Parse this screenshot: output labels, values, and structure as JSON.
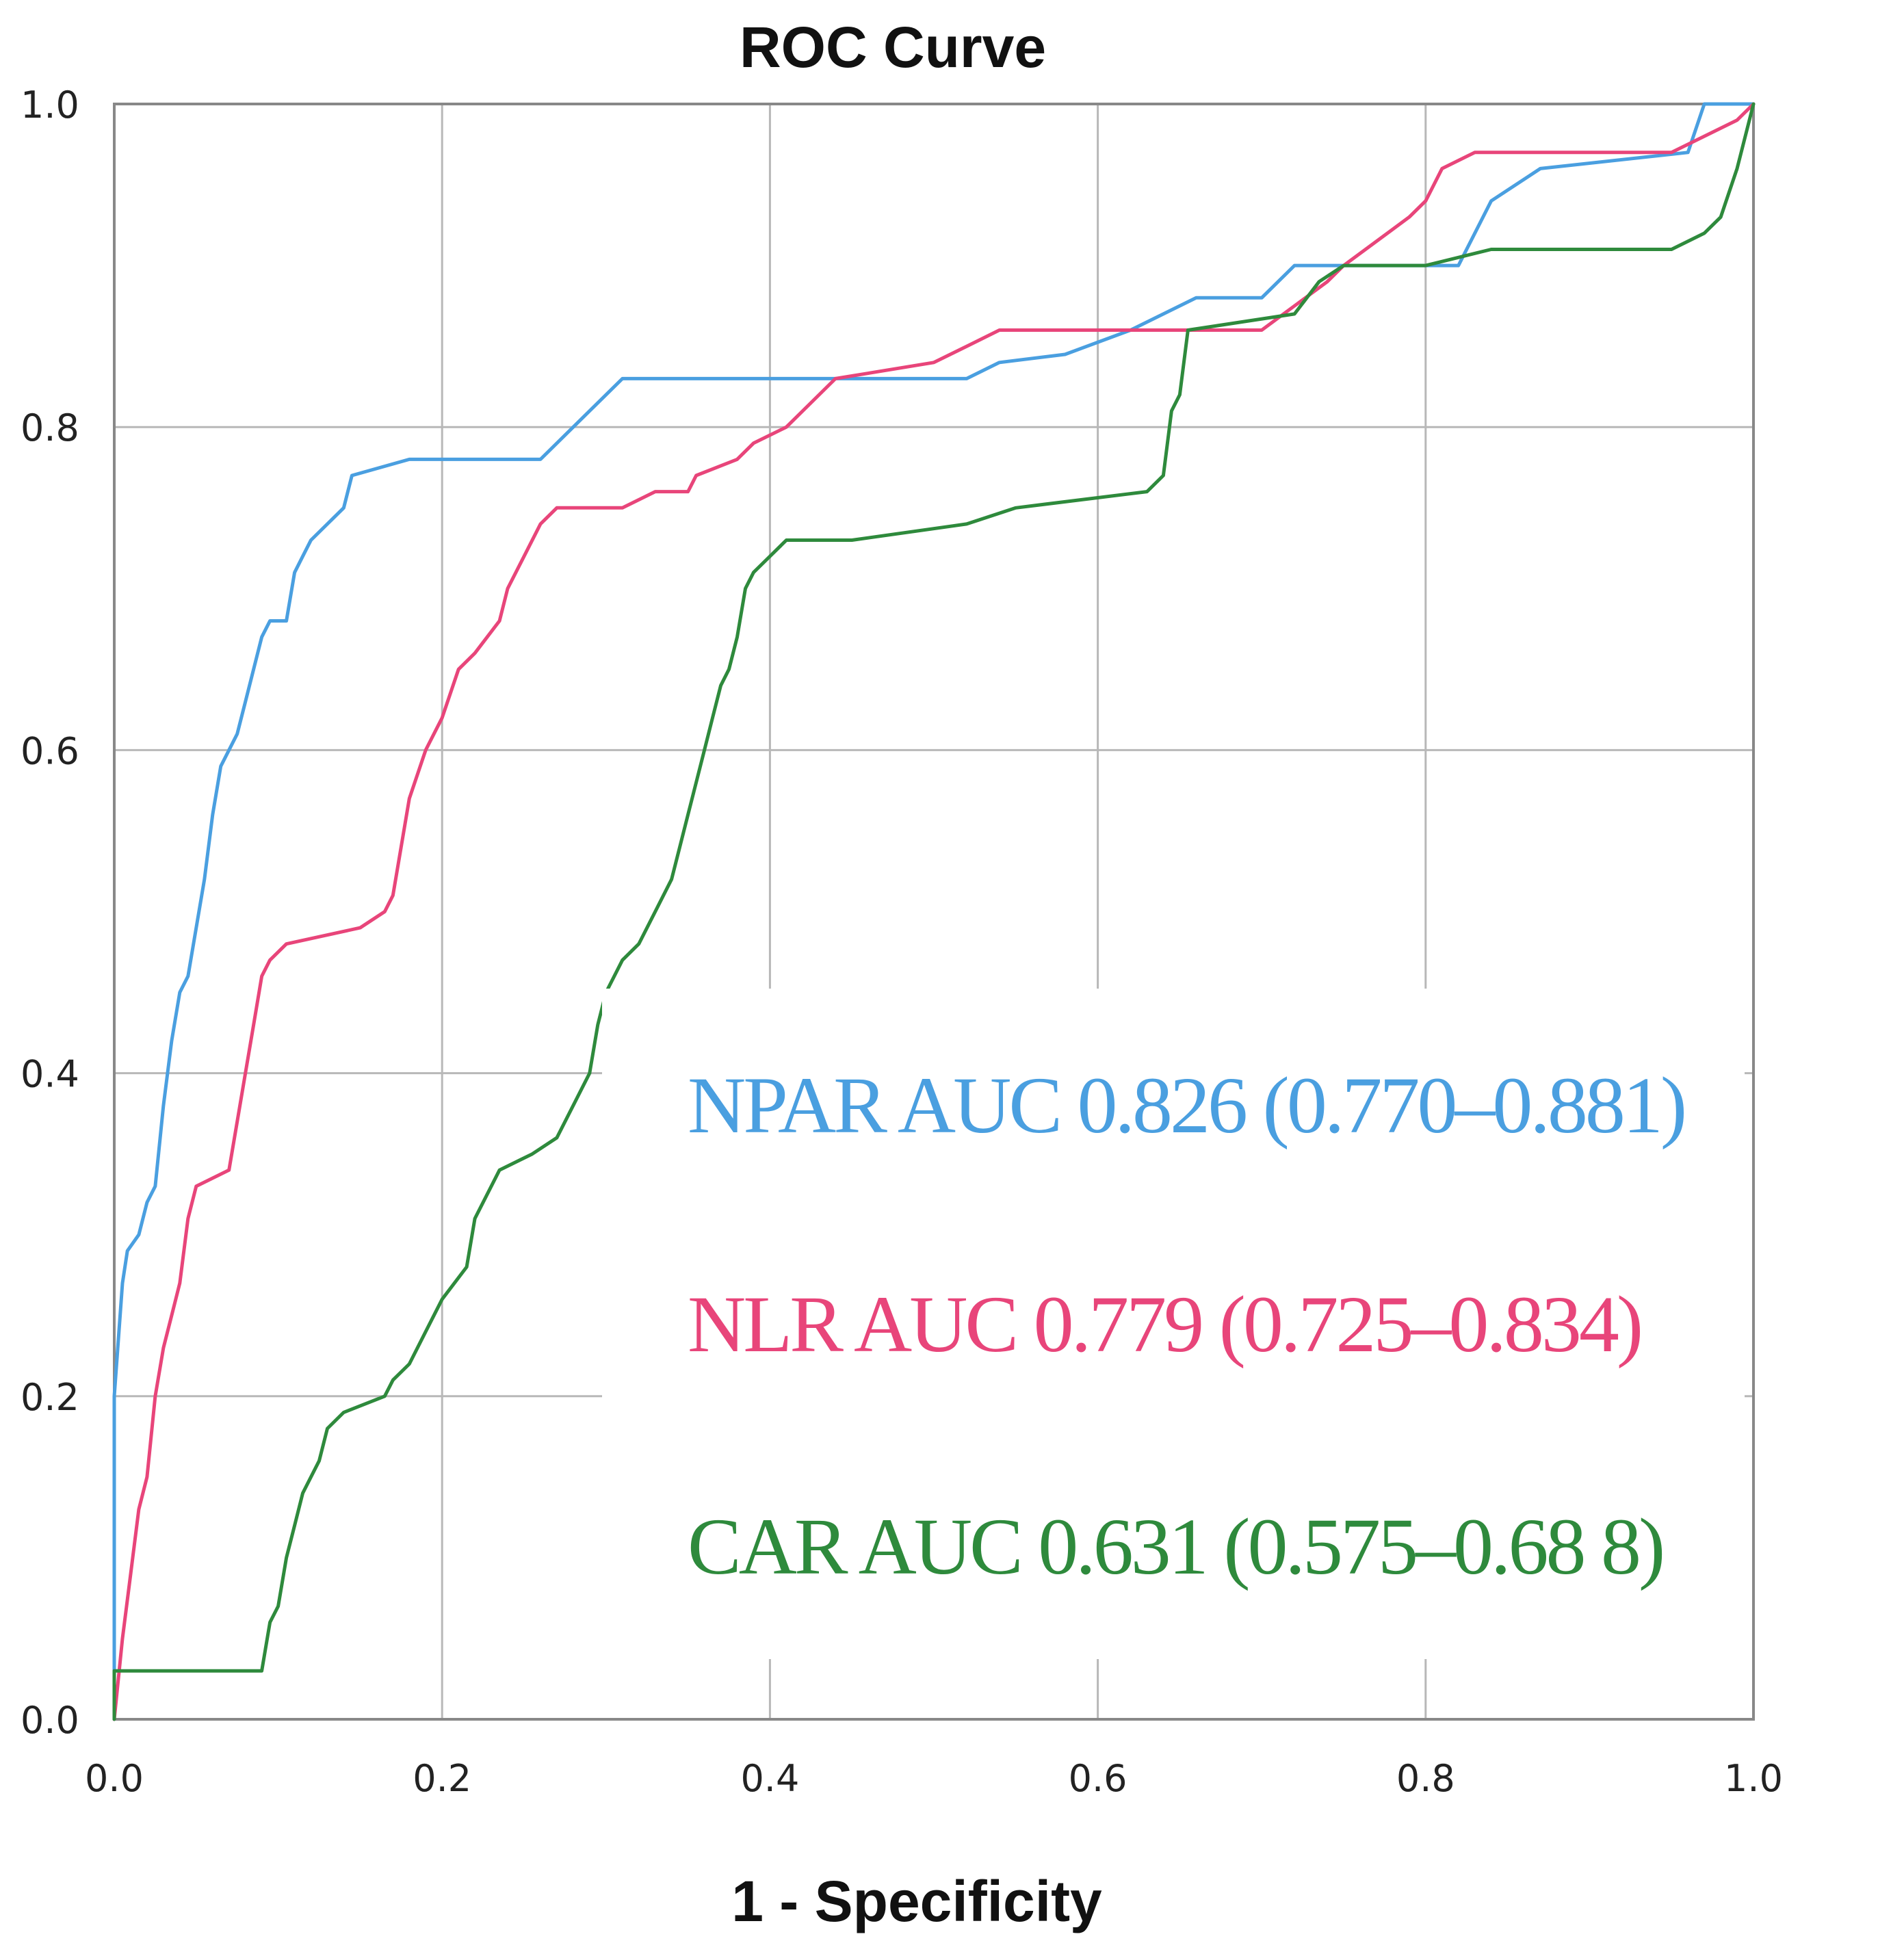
{
  "chart_data": {
    "type": "line",
    "title": "ROC Curve",
    "xlabel": "1 - Specificity",
    "ylabel": "",
    "xlim": [
      0,
      1
    ],
    "ylim": [
      0,
      1
    ],
    "grid": true,
    "x_ticks": [
      "0.0",
      "0.2",
      "0.4",
      "0.6",
      "0.8",
      "1.0"
    ],
    "y_ticks": [
      "0.0",
      "0.2",
      "0.4",
      "0.6",
      "0.8",
      "1.0"
    ],
    "series": [
      {
        "name": "NPAR AUC 0.826 (0.770–0.881)",
        "color": "#4a9fe0",
        "points": [
          [
            0,
            0
          ],
          [
            0,
            0.2
          ],
          [
            0.005,
            0.27
          ],
          [
            0.008,
            0.29
          ],
          [
            0.015,
            0.3
          ],
          [
            0.02,
            0.32
          ],
          [
            0.025,
            0.33
          ],
          [
            0.03,
            0.38
          ],
          [
            0.035,
            0.42
          ],
          [
            0.04,
            0.45
          ],
          [
            0.045,
            0.46
          ],
          [
            0.05,
            0.49
          ],
          [
            0.055,
            0.52
          ],
          [
            0.06,
            0.56
          ],
          [
            0.065,
            0.59
          ],
          [
            0.07,
            0.6
          ],
          [
            0.075,
            0.61
          ],
          [
            0.08,
            0.63
          ],
          [
            0.09,
            0.67
          ],
          [
            0.095,
            0.68
          ],
          [
            0.105,
            0.68
          ],
          [
            0.11,
            0.71
          ],
          [
            0.115,
            0.72
          ],
          [
            0.12,
            0.73
          ],
          [
            0.13,
            0.74
          ],
          [
            0.14,
            0.75
          ],
          [
            0.145,
            0.77
          ],
          [
            0.18,
            0.78
          ],
          [
            0.26,
            0.78
          ],
          [
            0.29,
            0.81
          ],
          [
            0.31,
            0.83
          ],
          [
            0.44,
            0.83
          ],
          [
            0.52,
            0.83
          ],
          [
            0.54,
            0.84
          ],
          [
            0.58,
            0.845
          ],
          [
            0.62,
            0.86
          ],
          [
            0.66,
            0.88
          ],
          [
            0.7,
            0.88
          ],
          [
            0.72,
            0.9
          ],
          [
            0.82,
            0.9
          ],
          [
            0.83,
            0.92
          ],
          [
            0.84,
            0.94
          ],
          [
            0.87,
            0.96
          ],
          [
            0.96,
            0.97
          ],
          [
            0.97,
            1.0
          ],
          [
            1.0,
            1.0
          ]
        ]
      },
      {
        "name": "NLR AUC 0.779 (0.725–0.834)",
        "color": "#e8457a",
        "points": [
          [
            0,
            0
          ],
          [
            0.005,
            0.05
          ],
          [
            0.01,
            0.09
          ],
          [
            0.015,
            0.13
          ],
          [
            0.02,
            0.15
          ],
          [
            0.025,
            0.2
          ],
          [
            0.03,
            0.23
          ],
          [
            0.035,
            0.25
          ],
          [
            0.04,
            0.27
          ],
          [
            0.045,
            0.31
          ],
          [
            0.05,
            0.33
          ],
          [
            0.07,
            0.34
          ],
          [
            0.075,
            0.37
          ],
          [
            0.08,
            0.4
          ],
          [
            0.085,
            0.43
          ],
          [
            0.09,
            0.46
          ],
          [
            0.095,
            0.47
          ],
          [
            0.105,
            0.48
          ],
          [
            0.15,
            0.49
          ],
          [
            0.165,
            0.5
          ],
          [
            0.17,
            0.51
          ],
          [
            0.175,
            0.54
          ],
          [
            0.18,
            0.57
          ],
          [
            0.19,
            0.6
          ],
          [
            0.2,
            0.62
          ],
          [
            0.21,
            0.65
          ],
          [
            0.22,
            0.66
          ],
          [
            0.235,
            0.68
          ],
          [
            0.24,
            0.7
          ],
          [
            0.25,
            0.72
          ],
          [
            0.26,
            0.74
          ],
          [
            0.27,
            0.75
          ],
          [
            0.31,
            0.75
          ],
          [
            0.33,
            0.76
          ],
          [
            0.35,
            0.76
          ],
          [
            0.355,
            0.77
          ],
          [
            0.38,
            0.78
          ],
          [
            0.39,
            0.79
          ],
          [
            0.41,
            0.8
          ],
          [
            0.42,
            0.81
          ],
          [
            0.44,
            0.83
          ],
          [
            0.5,
            0.84
          ],
          [
            0.52,
            0.85
          ],
          [
            0.54,
            0.86
          ],
          [
            0.7,
            0.86
          ],
          [
            0.74,
            0.89
          ],
          [
            0.75,
            0.9
          ],
          [
            0.79,
            0.93
          ],
          [
            0.8,
            0.94
          ],
          [
            0.81,
            0.96
          ],
          [
            0.83,
            0.97
          ],
          [
            0.86,
            0.97
          ],
          [
            0.95,
            0.97
          ],
          [
            0.99,
            0.99
          ],
          [
            1.0,
            1.0
          ]
        ]
      },
      {
        "name": "CAR AUC 0.631 (0.575–0.68 8)",
        "color": "#2e8a3c",
        "points": [
          [
            0,
            0
          ],
          [
            0,
            0.03
          ],
          [
            0.09,
            0.03
          ],
          [
            0.095,
            0.06
          ],
          [
            0.1,
            0.07
          ],
          [
            0.105,
            0.1
          ],
          [
            0.11,
            0.12
          ],
          [
            0.115,
            0.14
          ],
          [
            0.125,
            0.16
          ],
          [
            0.13,
            0.18
          ],
          [
            0.14,
            0.19
          ],
          [
            0.165,
            0.2
          ],
          [
            0.17,
            0.21
          ],
          [
            0.18,
            0.22
          ],
          [
            0.19,
            0.24
          ],
          [
            0.2,
            0.26
          ],
          [
            0.215,
            0.28
          ],
          [
            0.22,
            0.31
          ],
          [
            0.23,
            0.33
          ],
          [
            0.235,
            0.34
          ],
          [
            0.255,
            0.35
          ],
          [
            0.27,
            0.36
          ],
          [
            0.28,
            0.38
          ],
          [
            0.29,
            0.4
          ],
          [
            0.295,
            0.43
          ],
          [
            0.3,
            0.45
          ],
          [
            0.31,
            0.47
          ],
          [
            0.32,
            0.48
          ],
          [
            0.33,
            0.5
          ],
          [
            0.34,
            0.52
          ],
          [
            0.35,
            0.56
          ],
          [
            0.36,
            0.6
          ],
          [
            0.365,
            0.62
          ],
          [
            0.37,
            0.64
          ],
          [
            0.375,
            0.65
          ],
          [
            0.38,
            0.67
          ],
          [
            0.385,
            0.7
          ],
          [
            0.39,
            0.71
          ],
          [
            0.4,
            0.72
          ],
          [
            0.41,
            0.73
          ],
          [
            0.45,
            0.73
          ],
          [
            0.52,
            0.74
          ],
          [
            0.55,
            0.75
          ],
          [
            0.63,
            0.76
          ],
          [
            0.64,
            0.77
          ],
          [
            0.645,
            0.81
          ],
          [
            0.65,
            0.82
          ],
          [
            0.655,
            0.86
          ],
          [
            0.72,
            0.87
          ],
          [
            0.735,
            0.89
          ],
          [
            0.75,
            0.9
          ],
          [
            0.8,
            0.9
          ],
          [
            0.84,
            0.91
          ],
          [
            0.95,
            0.91
          ],
          [
            0.97,
            0.92
          ],
          [
            0.98,
            0.93
          ],
          [
            0.99,
            0.96
          ],
          [
            1.0,
            1.0
          ]
        ]
      }
    ]
  }
}
